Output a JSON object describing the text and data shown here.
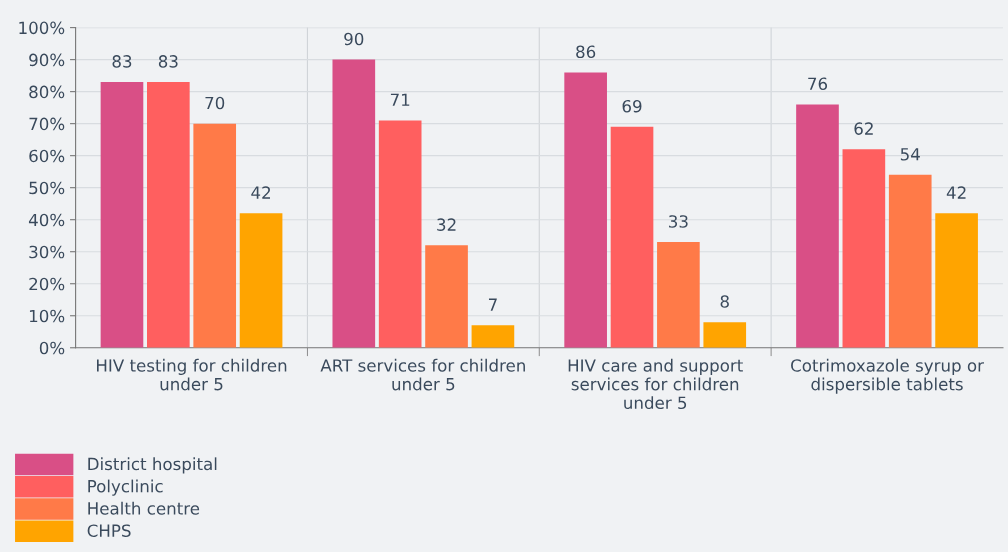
{
  "chart_data": {
    "type": "bar",
    "categories": [
      "HIV testing for children\nunder 5",
      "ART services for children\nunder 5",
      "HIV care and support\nservices for children\nunder 5",
      "Cotrimoxazole syrup or\ndispersible tablets"
    ],
    "series": [
      {
        "name": "District hospital",
        "color": "#d94f86",
        "values": [
          83,
          90,
          86,
          76
        ]
      },
      {
        "name": "Polyclinic",
        "color": "#ff5f5f",
        "values": [
          83,
          71,
          69,
          62
        ]
      },
      {
        "name": "Health centre",
        "color": "#ff7a48",
        "values": [
          70,
          32,
          33,
          54
        ]
      },
      {
        "name": "CHPS",
        "color": "#ffa400",
        "values": [
          42,
          7,
          8,
          42
        ]
      }
    ],
    "ylim": [
      0,
      100
    ],
    "yticks": [
      {
        "value": 0,
        "label": "0%"
      },
      {
        "value": 10,
        "label": "10%"
      },
      {
        "value": 20,
        "label": "20%"
      },
      {
        "value": 30,
        "label": "30%"
      },
      {
        "value": 40,
        "label": "40%"
      },
      {
        "value": 50,
        "label": "50%"
      },
      {
        "value": 60,
        "label": "60%"
      },
      {
        "value": 70,
        "label": "70%"
      },
      {
        "value": 80,
        "label": "80%"
      },
      {
        "value": 90,
        "label": "90%"
      },
      {
        "value": 100,
        "label": "100%"
      }
    ],
    "data_labels": true,
    "grid": true,
    "legend": "bottom left"
  }
}
